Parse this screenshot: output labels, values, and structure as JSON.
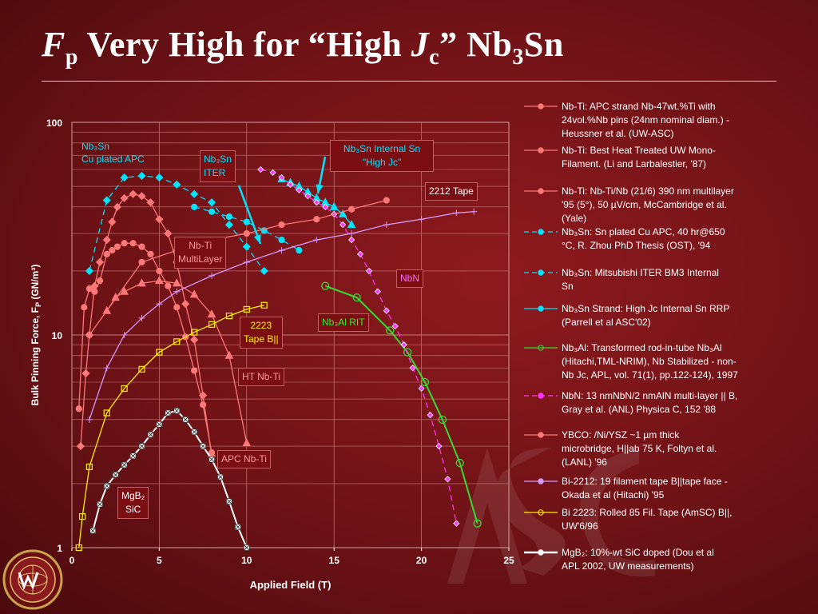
{
  "title": {
    "pre_italic": "F",
    "pre_sub": "p",
    "mid": " Very High for “High ",
    "j_italic": "J",
    "j_sub": "c",
    "post": "” Nb",
    "nb_sub": "3",
    "tail": "Sn"
  },
  "chart_data": {
    "type": "line",
    "xlabel": "Applied Field (T)",
    "ylabel": "Bulk Pinning Force,  F",
    "ylabel_sub": "P",
    "ylabel_units": "(GN/m³)",
    "xlim": [
      0,
      25
    ],
    "ylim": [
      1,
      100
    ],
    "yscale": "log",
    "grid": true,
    "x_ticks": [
      "0",
      "5",
      "10",
      "15",
      "20",
      "25"
    ],
    "y_ticks": [
      "1",
      "10",
      "100"
    ],
    "series": [
      {
        "name": "Nb-Ti:  APC strand Nb-47wt.%Ti with 24vol.%Nb pins (24nm nominal diam.) - Heussner et al. (UW-ASC)",
        "color": "#ff7878",
        "marker": "diamond",
        "dash": false,
        "x": [
          0.5,
          0.8,
          1,
          1.3,
          1.6,
          2,
          2.3,
          2.6,
          3,
          3.5,
          4,
          4.5,
          5,
          5.5,
          6,
          6.5,
          7,
          7.5,
          8
        ],
        "y": [
          3.0,
          6.6,
          10,
          17,
          22,
          28,
          34,
          40,
          44,
          46,
          45,
          42,
          35,
          30,
          22,
          14,
          9.5,
          5.2,
          2.7
        ]
      },
      {
        "name": "Nb-Ti: Best Heat Treated UW Mono-Filament. (Li and Larbalestier, '87)",
        "color": "#ff7878",
        "marker": "triangle",
        "dash": false,
        "x": [
          2,
          2.5,
          3,
          4,
          5,
          6,
          7,
          8,
          9,
          10
        ],
        "y": [
          13,
          15,
          16,
          17.5,
          18,
          17.5,
          15.5,
          12.5,
          8,
          3.1
        ]
      },
      {
        "name": "Nb-Ti: Nb-Ti/Nb (21/6) 390 nm multilayer '95 (5°), 50 µV/cm, McCambridge et al. (Yale)",
        "color": "#ff7878",
        "marker": "circle",
        "dash": false,
        "x": [
          0.4,
          0.7,
          1,
          1.3,
          1.6,
          2,
          2.3,
          2.6,
          3,
          3.5,
          4,
          4.5,
          5,
          5.5,
          6,
          6.5,
          7,
          7.5,
          8
        ],
        "y": [
          4.5,
          13.5,
          16.5,
          16,
          18,
          24,
          25,
          26,
          27,
          27,
          26,
          24,
          20,
          17,
          13.5,
          9.8,
          6.8,
          4.7,
          2.8
        ]
      },
      {
        "name": "Nb₃Sn: Sn plated Cu APC, 40 hr@650 °C, R. Zhou PhD Thesis (OST), '94",
        "color": "#00e5ff",
        "marker": "diamond",
        "dash": true,
        "x": [
          1,
          2,
          3,
          4,
          5,
          6,
          7,
          8,
          9,
          10,
          11
        ],
        "y": [
          20,
          43,
          55,
          56,
          55,
          51,
          46,
          42,
          33,
          26,
          20
        ]
      },
      {
        "name": "Nb₃Sn: Mitsubishi ITER BM3 Internal Sn",
        "color": "#00e5ff",
        "marker": "circle",
        "dash": true,
        "x": [
          7,
          8,
          9,
          10,
          11,
          12,
          13
        ],
        "y": [
          40,
          38,
          36,
          34,
          31,
          28,
          25
        ]
      },
      {
        "name": "Nb₃Sn Strand: High Jc Internal Sn RRP (Parrell et al ASC'02)",
        "color": "#00e5ff",
        "marker": "triangle",
        "dash": false,
        "x": [
          12,
          12.5,
          13,
          13.5,
          14,
          14.5,
          15,
          15.5,
          16
        ],
        "y": [
          54,
          52,
          50,
          47,
          44,
          42,
          40,
          37,
          33
        ]
      },
      {
        "name": "Nb₃Al: Transformed rod-in-tube Nb₃Al (Hitachi,TML-NRIM), Nb Stabilized - non-Nb Jc, APL, vol. 71(1), pp.122-124), 1997",
        "color": "#33dd33",
        "marker": "circle-open",
        "dash": false,
        "x": [
          14.5,
          16.3,
          18.2,
          19.2,
          20.2,
          21.2,
          22.2,
          23.2
        ],
        "y": [
          17,
          15,
          10.5,
          8.3,
          6,
          4,
          2.5,
          1.3
        ]
      },
      {
        "name": "NbN: 13 nmNbN/2 nmAlN multi-layer || B, Gray et al. (ANL) Physica C, 152 '88",
        "color": "#ff33ff",
        "marker": "diamond-small",
        "dash": true,
        "x": [
          10.8,
          11.5,
          12,
          12.5,
          13,
          13.5,
          14,
          14.5,
          15,
          15.5,
          16,
          16.5,
          17,
          17.5,
          18,
          18.5,
          19,
          19.5,
          20,
          20.5,
          21,
          21.5,
          22
        ],
        "y": [
          60,
          58,
          55,
          51,
          48,
          45,
          42,
          40,
          37,
          33,
          28,
          24,
          20,
          16,
          13,
          11,
          9,
          7,
          5.6,
          4.2,
          3,
          2.1,
          1.3
        ]
      },
      {
        "name": "YBCO: /Ni/YSZ ~1 µm thick microbridge, H||ab 75 K, Foltyn et al. (LANL) '96",
        "color": "#ff7878",
        "marker": "circle",
        "dash": false,
        "x": [
          1,
          4,
          6,
          8,
          10,
          12,
          14,
          16,
          18
        ],
        "y": [
          10,
          22,
          25,
          28,
          30,
          33,
          35,
          39,
          43
        ]
      },
      {
        "name": "Bi-2212:  19 filament tape B||tape face - Okada et al (Hitachi) '95",
        "color": "#d899ff",
        "marker": "plus",
        "dash": false,
        "x": [
          1,
          2,
          3,
          4,
          5,
          6,
          8,
          10,
          12,
          14,
          16,
          18,
          20,
          22,
          23
        ],
        "y": [
          4,
          7,
          10,
          12,
          14,
          16,
          19,
          22,
          25,
          28,
          30,
          33,
          35,
          37.5,
          38
        ]
      },
      {
        "name": "Bi 2223: Rolled 85 Fil. Tape (AmSC) B||, UW'6/96",
        "color": "#ffee00",
        "marker": "square-open",
        "dash": false,
        "x": [
          0.4,
          0.6,
          1,
          2,
          3,
          4,
          5,
          6,
          7,
          8,
          9,
          10,
          11
        ],
        "y": [
          1,
          1.4,
          2.4,
          4.3,
          5.6,
          6.9,
          8.3,
          9.3,
          10.3,
          11.2,
          12.3,
          13.2,
          13.8
        ]
      },
      {
        "name": "MgB₂: 10%-wt SiC doped (Dou et al APL 2002, UW measurements)",
        "color": "#ffffff",
        "marker": "x-square",
        "dash": false,
        "x": [
          1.2,
          1.6,
          2,
          2.5,
          3,
          3.5,
          4,
          4.5,
          5,
          5.5,
          6,
          6.5,
          7,
          7.5,
          8,
          8.5,
          9,
          9.5,
          10
        ],
        "y": [
          1.2,
          1.6,
          1.95,
          2.2,
          2.45,
          2.7,
          3,
          3.4,
          3.8,
          4.3,
          4.4,
          4.0,
          3.5,
          3.0,
          2.6,
          2.15,
          1.65,
          1.25,
          1
        ]
      }
    ]
  },
  "legend_html": [
    "Nb-Ti:  APC strand Nb-47wt.%Ti with\n24vol.%Nb pins (24nm nominal diam.) -\nHeussner et al. (UW-ASC)",
    "Nb-Ti: Best Heat Treated UW Mono-\nFilament. (Li and Larbalestier, '87)",
    "Nb-Ti: Nb-Ti/Nb (21/6) 390 nm multilayer\n'95 (5°), 50 µV/cm, McCambridge et al.\n(Yale)",
    "Nb₃Sn: Sn plated Cu APC, 40 hr@650\n°C, R. Zhou PhD Thesis (OST), '94",
    "Nb₃Sn: Mitsubishi ITER BM3 Internal\nSn",
    "Nb₃Sn Strand: High Jc Internal Sn RRP\n(Parrell et al ASC'02)",
    "Nb₃Al: Transformed rod-in-tube Nb₃Al\n(Hitachi,TML-NRIM), Nb Stabilized - non-\nNb Jc, APL, vol. 71(1), pp.122-124), 1997",
    "NbN: 13 nmNbN/2 nmAlN multi-layer || B,\nGray et al. (ANL) Physica C, 152 '88",
    "YBCO: /Ni/YSZ ~1 µm thick\nmicrobridge, H||ab 75 K, Foltyn et al.\n(LANL) '96",
    "Bi-2212:  19 filament tape B||tape face -\nOkada et al (Hitachi) '95",
    "Bi 2223: Rolled 85 Fil. Tape (AmSC) B||,\nUW'6/96",
    "MgB₂: 10%-wt SiC doped (Dou et al\nAPL 2002, UW measurements)"
  ],
  "annotations": {
    "nb3sn_apc": "Nb₃Sn\nCu plated APC",
    "nb3sn_iter": "Nb₃Sn\nITER",
    "nb3sn_internal": "Nb₃Sn Internal Sn\n\"High Jc\"",
    "tape_2212": "2212 Tape",
    "nbti_multilayer": "Nb-Ti\nMultiLayer",
    "nbn": "NbN",
    "nb3al_rit": "Nb₃Al RIT",
    "tape_2223": "2223\nTape B||",
    "ht_nbti": "HT Nb-Ti",
    "apc_nbti": "APC Nb-Ti",
    "mgb2": "MgB₂\nSiC"
  },
  "colors": {
    "annotation_cyan": "#00e5ff",
    "annotation_yellow": "#ffee00",
    "annotation_red": "#ff7878",
    "annotation_pink": "#ff33ff",
    "annotation_green": "#33dd33"
  }
}
